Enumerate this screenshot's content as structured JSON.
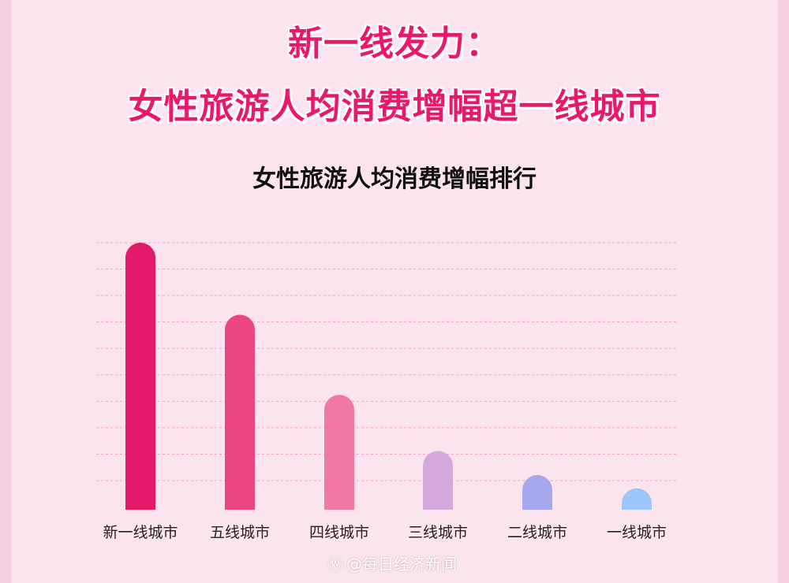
{
  "title_line1": "新一线发力：",
  "title_line2": "女性旅游人均消费增幅超一线城市",
  "watermark": "@每日经济新闻",
  "watermark_icon": "weibo-icon",
  "chart_data": {
    "type": "bar",
    "title": "女性旅游人均消费增幅排行",
    "categories": [
      "新一线城市",
      "五线城市",
      "四线城市",
      "三线城市",
      "二线城市",
      "一线城市"
    ],
    "values": [
      100,
      73,
      43,
      22,
      13,
      8
    ],
    "colors": [
      "#e3196a",
      "#ec4583",
      "#f078a4",
      "#d4a8dc",
      "#a4a8ec",
      "#9ac6fa"
    ],
    "ylim": [
      0,
      100
    ],
    "grid": true,
    "legend": "none"
  }
}
